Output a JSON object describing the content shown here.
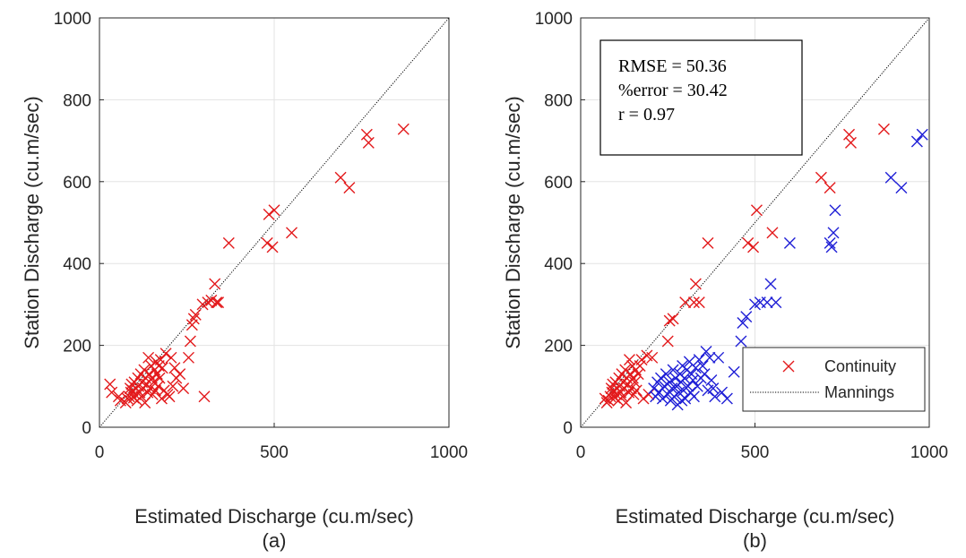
{
  "chart_data": [
    {
      "type": "scatter",
      "panel_label": "(a)",
      "title": "",
      "xlabel": "Estimated Discharge (cu.m/sec)",
      "ylabel": "Station Discharge (cu.m/sec)",
      "xlim": [
        0,
        1000
      ],
      "ylim": [
        0,
        1000
      ],
      "xticks": [
        "0",
        "500",
        "1000"
      ],
      "yticks": [
        "0",
        "200",
        "400",
        "600",
        "800",
        "1000"
      ],
      "grid": true,
      "reference_line": {
        "x": [
          0,
          1000
        ],
        "y": [
          0,
          1000
        ],
        "style": "dotted",
        "color": "#000000"
      },
      "series": [
        {
          "marker": "x",
          "color": "#e31a1c",
          "points": [
            [
              30,
              105
            ],
            [
              35,
              85
            ],
            [
              55,
              75
            ],
            [
              60,
              65
            ],
            [
              75,
              60
            ],
            [
              80,
              70
            ],
            [
              85,
              75
            ],
            [
              88,
              95
            ],
            [
              90,
              85
            ],
            [
              92,
              105
            ],
            [
              95,
              90
            ],
            [
              98,
              72
            ],
            [
              100,
              110
            ],
            [
              102,
              80
            ],
            [
              105,
              95
            ],
            [
              108,
              65
            ],
            [
              110,
              120
            ],
            [
              112,
              100
            ],
            [
              115,
              85
            ],
            [
              118,
              130
            ],
            [
              120,
              75
            ],
            [
              122,
              110
            ],
            [
              125,
              95
            ],
            [
              128,
              140
            ],
            [
              130,
              60
            ],
            [
              132,
              120
            ],
            [
              135,
              105
            ],
            [
              138,
              85
            ],
            [
              140,
              170
            ],
            [
              142,
              130
            ],
            [
              145,
              95
            ],
            [
              148,
              150
            ],
            [
              150,
              120
            ],
            [
              152,
              80
            ],
            [
              155,
              110
            ],
            [
              158,
              140
            ],
            [
              160,
              90
            ],
            [
              162,
              160
            ],
            [
              165,
              130
            ],
            [
              168,
              100
            ],
            [
              170,
              150
            ],
            [
              172,
              120
            ],
            [
              175,
              165
            ],
            [
              178,
              70
            ],
            [
              180,
              145
            ],
            [
              185,
              90
            ],
            [
              190,
              180
            ],
            [
              195,
              80
            ],
            [
              200,
              75
            ],
            [
              205,
              170
            ],
            [
              210,
              100
            ],
            [
              215,
              145
            ],
            [
              220,
              120
            ],
            [
              230,
              130
            ],
            [
              240,
              95
            ],
            [
              255,
              170
            ],
            [
              260,
              210
            ],
            [
              265,
              250
            ],
            [
              270,
              265
            ],
            [
              275,
              275
            ],
            [
              295,
              300
            ],
            [
              300,
              75
            ],
            [
              310,
              305
            ],
            [
              320,
              310
            ],
            [
              330,
              350
            ],
            [
              335,
              305
            ],
            [
              340,
              305
            ],
            [
              370,
              450
            ],
            [
              480,
              450
            ],
            [
              485,
              520
            ],
            [
              495,
              440
            ],
            [
              500,
              530
            ],
            [
              550,
              475
            ],
            [
              690,
              610
            ],
            [
              715,
              585
            ],
            [
              765,
              715
            ],
            [
              770,
              695
            ],
            [
              870,
              728
            ]
          ]
        }
      ]
    },
    {
      "type": "scatter",
      "panel_label": "(b)",
      "title": "",
      "xlabel": "Estimated Discharge (cu.m/sec)",
      "ylabel": "Station Discharge (cu.m/sec)",
      "xlim": [
        0,
        1000
      ],
      "ylim": [
        0,
        1000
      ],
      "xticks": [
        "0",
        "500",
        "1000"
      ],
      "yticks": [
        "0",
        "200",
        "400",
        "600",
        "800",
        "1000"
      ],
      "grid": true,
      "reference_line": {
        "x": [
          0,
          1000
        ],
        "y": [
          0,
          1000
        ],
        "style": "dotted",
        "color": "#000000"
      },
      "annotation": [
        "RMSE = 50.36",
        "%error = 30.42",
        "r = 0.97"
      ],
      "legend": {
        "position": "bottom-right",
        "entries": [
          "Continuity",
          "Mannings"
        ]
      },
      "series": [
        {
          "name": "Continuity",
          "marker": "x",
          "color": "#e31a1c",
          "points": [
            [
              70,
              70
            ],
            [
              75,
              60
            ],
            [
              80,
              65
            ],
            [
              85,
              75
            ],
            [
              88,
              95
            ],
            [
              90,
              85
            ],
            [
              92,
              105
            ],
            [
              95,
              90
            ],
            [
              98,
              72
            ],
            [
              100,
              110
            ],
            [
              102,
              80
            ],
            [
              105,
              95
            ],
            [
              108,
              65
            ],
            [
              110,
              120
            ],
            [
              112,
              100
            ],
            [
              115,
              85
            ],
            [
              118,
              130
            ],
            [
              120,
              75
            ],
            [
              122,
              110
            ],
            [
              125,
              95
            ],
            [
              128,
              140
            ],
            [
              130,
              60
            ],
            [
              132,
              120
            ],
            [
              135,
              105
            ],
            [
              138,
              85
            ],
            [
              140,
              165
            ],
            [
              142,
              130
            ],
            [
              145,
              95
            ],
            [
              148,
              150
            ],
            [
              150,
              120
            ],
            [
              152,
              80
            ],
            [
              155,
              110
            ],
            [
              158,
              140
            ],
            [
              160,
              90
            ],
            [
              165,
              130
            ],
            [
              170,
              150
            ],
            [
              175,
              165
            ],
            [
              180,
              70
            ],
            [
              190,
              175
            ],
            [
              195,
              80
            ],
            [
              205,
              170
            ],
            [
              250,
              210
            ],
            [
              255,
              260
            ],
            [
              265,
              265
            ],
            [
              300,
              305
            ],
            [
              325,
              305
            ],
            [
              330,
              350
            ],
            [
              340,
              305
            ],
            [
              365,
              450
            ],
            [
              480,
              450
            ],
            [
              495,
              440
            ],
            [
              505,
              530
            ],
            [
              550,
              475
            ],
            [
              690,
              610
            ],
            [
              715,
              585
            ],
            [
              770,
              715
            ],
            [
              775,
              695
            ],
            [
              870,
              728
            ]
          ]
        },
        {
          "name": "",
          "marker": "x",
          "color": "#1f1fd6",
          "points": [
            [
              210,
              95
            ],
            [
              215,
              75
            ],
            [
              220,
              110
            ],
            [
              225,
              85
            ],
            [
              230,
              120
            ],
            [
              235,
              70
            ],
            [
              240,
              100
            ],
            [
              245,
              130
            ],
            [
              250,
              80
            ],
            [
              255,
              110
            ],
            [
              258,
              65
            ],
            [
              262,
              95
            ],
            [
              265,
              140
            ],
            [
              268,
              75
            ],
            [
              272,
              120
            ],
            [
              275,
              100
            ],
            [
              278,
              55
            ],
            [
              282,
              85
            ],
            [
              285,
              130
            ],
            [
              288,
              110
            ],
            [
              290,
              65
            ],
            [
              292,
              150
            ],
            [
              295,
              90
            ],
            [
              298,
              120
            ],
            [
              300,
              70
            ],
            [
              305,
              140
            ],
            [
              308,
              100
            ],
            [
              312,
              160
            ],
            [
              315,
              85
            ],
            [
              318,
              130
            ],
            [
              322,
              115
            ],
            [
              325,
              75
            ],
            [
              330,
              145
            ],
            [
              335,
              100
            ],
            [
              340,
              165
            ],
            [
              345,
              120
            ],
            [
              350,
              150
            ],
            [
              355,
              130
            ],
            [
              360,
              185
            ],
            [
              365,
              90
            ],
            [
              370,
              170
            ],
            [
              375,
              115
            ],
            [
              380,
              95
            ],
            [
              385,
              75
            ],
            [
              395,
              170
            ],
            [
              405,
              85
            ],
            [
              420,
              70
            ],
            [
              440,
              135
            ],
            [
              460,
              210
            ],
            [
              465,
              255
            ],
            [
              475,
              270
            ],
            [
              500,
              300
            ],
            [
              515,
              305
            ],
            [
              535,
              305
            ],
            [
              545,
              350
            ],
            [
              560,
              305
            ],
            [
              600,
              450
            ],
            [
              715,
              450
            ],
            [
              720,
              440
            ],
            [
              725,
              475
            ],
            [
              730,
              530
            ],
            [
              890,
              610
            ],
            [
              920,
              585
            ],
            [
              965,
              698
            ],
            [
              980,
              715
            ]
          ]
        }
      ]
    }
  ]
}
